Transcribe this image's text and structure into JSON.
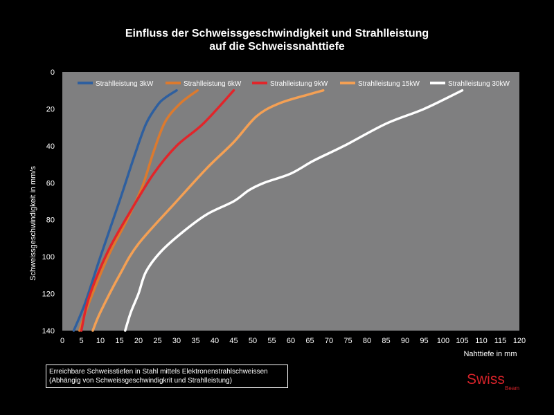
{
  "chart_data": {
    "type": "line",
    "title_lines": [
      "Einfluss der Schweissgeschwindigkeit und Strahlleistung",
      "auf die Schweissnahttiefe"
    ],
    "xlabel": "Nahttiefe in mm",
    "ylabel": "Schweissgeschwindigkeit in mm/s",
    "xlim": [
      0,
      120
    ],
    "ylim": [
      0,
      140
    ],
    "y_inverted": true,
    "xticks": [
      0,
      5,
      10,
      15,
      20,
      25,
      30,
      35,
      40,
      45,
      50,
      55,
      60,
      65,
      70,
      75,
      80,
      85,
      90,
      95,
      100,
      105,
      110,
      115,
      120
    ],
    "yticks": [
      0,
      20,
      40,
      60,
      80,
      100,
      120,
      140
    ],
    "grid": false,
    "plot_background": "#7f7f80",
    "legend_position": "top",
    "series": [
      {
        "name": "Strahlleistung 3kW",
        "color": "#2e5f9f",
        "points": [
          [
            30,
            10
          ],
          [
            27,
            14
          ],
          [
            25,
            18
          ],
          [
            22,
            28
          ],
          [
            19,
            45
          ],
          [
            15,
            70
          ],
          [
            10,
            100
          ],
          [
            6,
            125
          ],
          [
            3,
            140
          ]
        ]
      },
      {
        "name": "Strahlleistung 6kW",
        "color": "#dc7a2e",
        "points": [
          [
            35.5,
            10
          ],
          [
            31,
            17
          ],
          [
            27,
            27
          ],
          [
            24,
            43
          ],
          [
            21,
            62
          ],
          [
            17,
            80
          ],
          [
            12,
            100
          ],
          [
            7,
            125
          ],
          [
            4.5,
            140
          ]
        ]
      },
      {
        "name": "Strahlleistung 9kW",
        "color": "#e2252a",
        "points": [
          [
            45,
            10
          ],
          [
            37,
            28
          ],
          [
            30,
            40
          ],
          [
            24,
            55
          ],
          [
            18,
            75
          ],
          [
            12,
            97
          ],
          [
            7,
            122
          ],
          [
            5,
            140
          ]
        ]
      },
      {
        "name": "Strahlleistung 15kW",
        "color": "#f4a054",
        "points": [
          [
            68.5,
            10
          ],
          [
            65,
            12
          ],
          [
            57,
            17
          ],
          [
            51,
            24
          ],
          [
            45,
            38
          ],
          [
            38,
            52
          ],
          [
            30,
            70
          ],
          [
            20,
            93
          ],
          [
            15,
            110
          ],
          [
            10,
            130
          ],
          [
            8,
            140
          ]
        ]
      },
      {
        "name": "Strahlleistung 30kW",
        "color": "#ffffff",
        "points": [
          [
            105,
            10
          ],
          [
            95,
            20
          ],
          [
            85,
            28
          ],
          [
            74,
            40
          ],
          [
            66,
            48
          ],
          [
            60,
            55
          ],
          [
            53,
            60
          ],
          [
            49,
            64
          ],
          [
            45,
            70
          ],
          [
            38,
            77
          ],
          [
            32,
            86
          ],
          [
            26,
            97
          ],
          [
            22,
            108
          ],
          [
            20,
            120
          ],
          [
            18,
            130
          ],
          [
            16.5,
            140
          ]
        ]
      }
    ]
  },
  "caption": {
    "line1": "Erreichbare Schweisstiefen in Stahl mittels Elektronenstrahlschweissen",
    "line2": "(Abhängig von Schweissgeschwindigkrit und Strahlleistung)"
  },
  "logo": {
    "main": "Swiss",
    "sub": "Beam",
    "color": "#d8232a"
  }
}
